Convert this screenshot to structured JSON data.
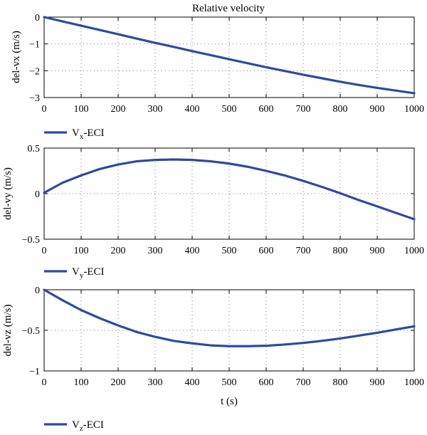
{
  "chart_data": [
    {
      "type": "line",
      "title": "Relative velocity",
      "xlabel": "",
      "ylabel": "del-vx (m/s)",
      "xlim": [
        0,
        1000
      ],
      "ylim": [
        -3,
        0
      ],
      "xticks": [
        0,
        100,
        200,
        300,
        400,
        500,
        600,
        700,
        800,
        900,
        1000
      ],
      "yticks": [
        -3,
        -2,
        -1,
        0
      ],
      "grid": true,
      "legend_position": "below-left",
      "series": [
        {
          "name": "Vx-ECI",
          "legend_main": "V",
          "legend_sub": "x",
          "legend_rest": "-ECI",
          "color": "#2e4a9e",
          "x": [
            0,
            50,
            100,
            150,
            200,
            250,
            300,
            350,
            400,
            450,
            500,
            550,
            600,
            650,
            700,
            750,
            800,
            850,
            900,
            950,
            1000
          ],
          "y": [
            0,
            -0.16,
            -0.32,
            -0.48,
            -0.64,
            -0.8,
            -0.96,
            -1.11,
            -1.27,
            -1.42,
            -1.57,
            -1.72,
            -1.87,
            -2.01,
            -2.15,
            -2.28,
            -2.41,
            -2.53,
            -2.64,
            -2.74,
            -2.84
          ]
        }
      ]
    },
    {
      "type": "line",
      "title": "",
      "xlabel": "",
      "ylabel": "del-vy (m/s)",
      "xlim": [
        0,
        1000
      ],
      "ylim": [
        -0.5,
        0.5
      ],
      "xticks": [
        0,
        100,
        200,
        300,
        400,
        500,
        600,
        700,
        800,
        900,
        1000
      ],
      "yticks": [
        -0.5,
        0,
        0.5
      ],
      "grid": true,
      "legend_position": "below-left",
      "series": [
        {
          "name": "Vy-ECI",
          "legend_main": "V",
          "legend_sub": "y",
          "legend_rest": "-ECI",
          "color": "#2e4a9e",
          "x": [
            0,
            50,
            100,
            150,
            200,
            250,
            300,
            350,
            400,
            450,
            500,
            550,
            600,
            650,
            700,
            750,
            800,
            850,
            900,
            950,
            1000
          ],
          "y": [
            0.01,
            0.12,
            0.2,
            0.27,
            0.32,
            0.355,
            0.37,
            0.375,
            0.37,
            0.355,
            0.33,
            0.295,
            0.25,
            0.2,
            0.14,
            0.075,
            0.005,
            -0.07,
            -0.14,
            -0.21,
            -0.28
          ]
        }
      ]
    },
    {
      "type": "line",
      "title": "",
      "xlabel": "t (s)",
      "ylabel": "del-vz (m/s)",
      "xlim": [
        0,
        1000
      ],
      "ylim": [
        -1,
        0
      ],
      "xticks": [
        0,
        100,
        200,
        300,
        400,
        500,
        600,
        700,
        800,
        900,
        1000
      ],
      "yticks": [
        -1,
        -0.5,
        0
      ],
      "grid": true,
      "legend_position": "below-left",
      "series": [
        {
          "name": "Vz-ECI",
          "legend_main": "V",
          "legend_sub": "z",
          "legend_rest": "-ECI",
          "color": "#2e4a9e",
          "x": [
            0,
            50,
            100,
            150,
            200,
            250,
            300,
            350,
            400,
            450,
            500,
            550,
            600,
            650,
            700,
            750,
            800,
            850,
            900,
            950,
            1000
          ],
          "y": [
            0,
            -0.13,
            -0.25,
            -0.35,
            -0.44,
            -0.52,
            -0.58,
            -0.63,
            -0.66,
            -0.685,
            -0.695,
            -0.695,
            -0.69,
            -0.675,
            -0.655,
            -0.63,
            -0.6,
            -0.565,
            -0.53,
            -0.49,
            -0.45
          ]
        }
      ]
    }
  ]
}
